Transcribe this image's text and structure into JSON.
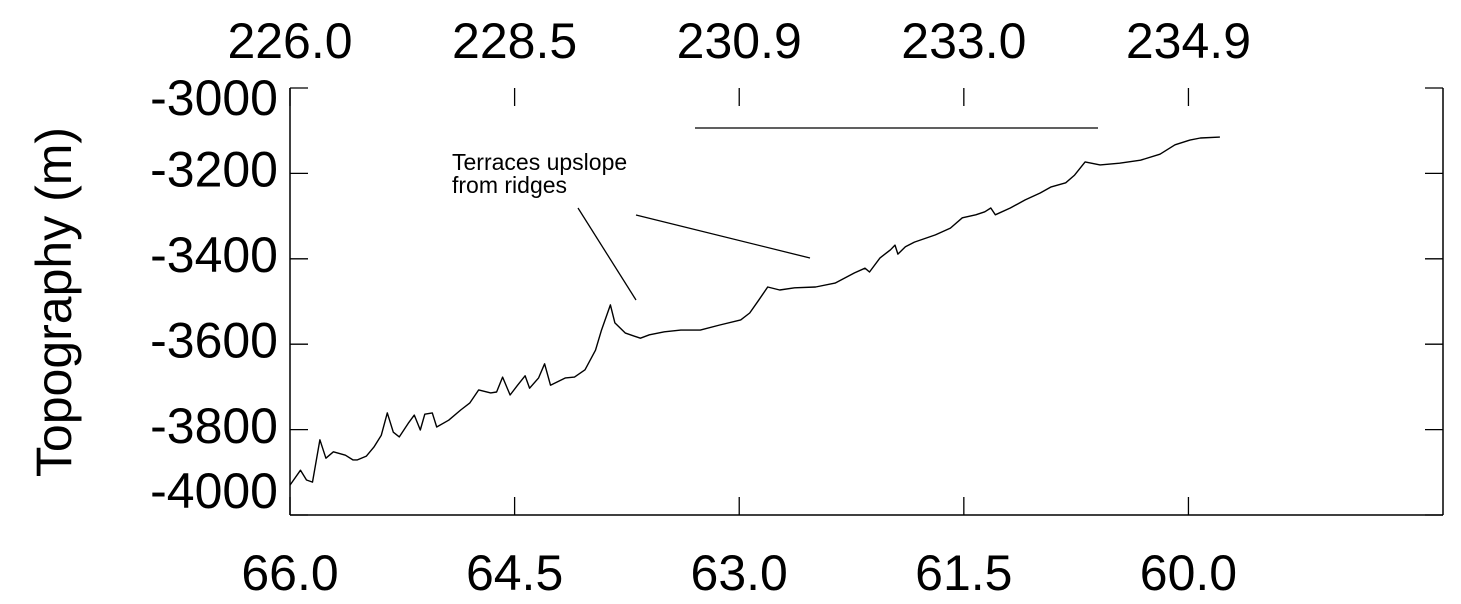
{
  "chart_data": {
    "type": "line",
    "ylabel": "Topography (m)",
    "annotation": [
      "Terraces upslope",
      "from ridges"
    ],
    "xlim": [
      66.0,
      58.3
    ],
    "xticks": [
      {
        "value": 66.0,
        "label": "66.0"
      },
      {
        "value": 64.5,
        "label": "64.5"
      },
      {
        "value": 63.0,
        "label": "63.0"
      },
      {
        "value": 61.5,
        "label": "61.5"
      },
      {
        "value": 60.0,
        "label": "60.0"
      }
    ],
    "x2ticks": [
      {
        "value": 66.0,
        "label": "226.0"
      },
      {
        "value": 64.5,
        "label": "228.5"
      },
      {
        "value": 63.0,
        "label": "230.9"
      },
      {
        "value": 61.5,
        "label": "233.0"
      },
      {
        "value": 60.0,
        "label": "234.9"
      }
    ],
    "ylim": [
      -4000,
      -3000
    ],
    "yticks": [
      -4000,
      -3800,
      -3600,
      -3400,
      -3200,
      -3000
    ],
    "color": "#000000",
    "x": [
      66.0,
      65.93,
      65.89,
      65.85,
      65.8,
      65.76,
      65.71,
      65.63,
      65.58,
      65.55,
      65.49,
      65.44,
      65.39,
      65.35,
      65.31,
      65.27,
      65.21,
      65.17,
      65.13,
      65.1,
      65.05,
      65.02,
      64.94,
      64.86,
      64.8,
      64.74,
      64.66,
      64.62,
      64.58,
      64.53,
      64.48,
      64.43,
      64.4,
      64.34,
      64.3,
      64.26,
      64.16,
      64.1,
      64.03,
      63.96,
      63.92,
      63.86,
      63.83,
      63.76,
      63.66,
      63.6,
      63.5,
      63.39,
      63.26,
      63.13,
      62.99,
      62.93,
      62.87,
      62.81,
      62.73,
      62.63,
      62.49,
      62.36,
      62.23,
      62.16,
      62.13,
      62.06,
      61.99,
      61.96,
      61.94,
      61.89,
      61.83,
      61.69,
      61.59,
      61.51,
      61.42,
      61.36,
      61.32,
      61.29,
      61.19,
      61.09,
      60.99,
      60.92,
      60.82,
      60.76,
      60.69,
      60.59,
      60.46,
      60.32,
      60.19,
      60.09,
      59.99,
      59.92,
      59.79
    ],
    "values": [
      -3930,
      -3895,
      -3918,
      -3923,
      -3824,
      -3867,
      -3852,
      -3860,
      -3871,
      -3871,
      -3862,
      -3841,
      -3813,
      -3761,
      -3806,
      -3817,
      -3785,
      -3766,
      -3801,
      -3764,
      -3761,
      -3794,
      -3778,
      -3754,
      -3738,
      -3707,
      -3714,
      -3712,
      -3677,
      -3719,
      -3696,
      -3674,
      -3703,
      -3679,
      -3646,
      -3696,
      -3679,
      -3677,
      -3660,
      -3614,
      -3567,
      -3508,
      -3550,
      -3574,
      -3586,
      -3578,
      -3571,
      -3567,
      -3567,
      -3555,
      -3543,
      -3527,
      -3497,
      -3466,
      -3473,
      -3468,
      -3466,
      -3457,
      -3433,
      -3422,
      -3431,
      -3398,
      -3379,
      -3368,
      -3389,
      -3372,
      -3361,
      -3344,
      -3328,
      -3304,
      -3297,
      -3290,
      -3281,
      -3297,
      -3281,
      -3262,
      -3246,
      -3232,
      -3222,
      -3204,
      -3173,
      -3180,
      -3176,
      -3169,
      -3155,
      -3133,
      -3122,
      -3117,
      -3115
    ]
  }
}
